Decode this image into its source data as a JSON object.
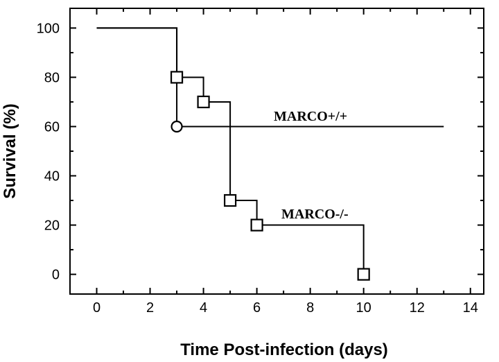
{
  "chart_data": {
    "type": "line",
    "step": true,
    "xlabel": "Time Post-infection (days)",
    "ylabel": "Survival (%)",
    "xlim": [
      -1,
      14.5
    ],
    "ylim": [
      -8,
      108
    ],
    "xticks": [
      0,
      2,
      4,
      6,
      8,
      10,
      12,
      14
    ],
    "xtick_labels": [
      "0",
      "2",
      "4",
      "6",
      "8",
      "10",
      "12",
      "14"
    ],
    "yticks": [
      0,
      20,
      40,
      60,
      80,
      100
    ],
    "ytick_labels": [
      "0",
      "20",
      "40",
      "60",
      "80",
      "100"
    ],
    "grid": false,
    "series": [
      {
        "name": "MARCO+/+",
        "marker": "circle",
        "x": [
          0,
          3,
          13
        ],
        "y": [
          100,
          60,
          60
        ],
        "markers": [
          {
            "x": 3,
            "y": 60
          }
        ]
      },
      {
        "name": "MARCO-/-",
        "marker": "square",
        "x": [
          0,
          3,
          4,
          5,
          6,
          10
        ],
        "y": [
          100,
          80,
          70,
          30,
          20,
          0
        ],
        "markers": [
          {
            "x": 3,
            "y": 80
          },
          {
            "x": 4,
            "y": 70
          },
          {
            "x": 5,
            "y": 30
          },
          {
            "x": 6,
            "y": 20
          },
          {
            "x": 10,
            "y": 0
          }
        ]
      }
    ]
  }
}
